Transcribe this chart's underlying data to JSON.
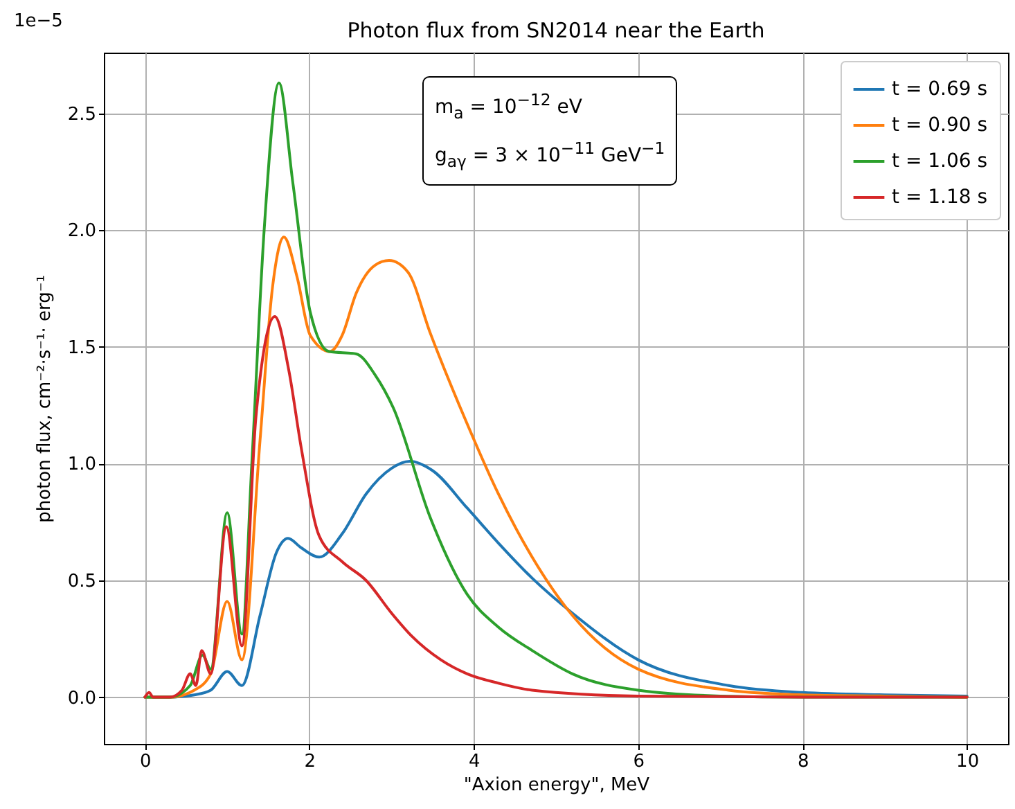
{
  "chart_data": {
    "type": "line",
    "title": "Photon flux from SN2014 near the Earth",
    "xlabel": "\"Axion energy\", MeV",
    "ylabel": "photon flux, cm⁻²·s⁻¹· erg⁻¹",
    "annotations": [
      "1e−5",
      "m$_{a}$ = 10$^{−12}$ eV",
      "g$_{aγ}$ = 3 × 10$^{−11}$ GeV$^{−1}$"
    ],
    "xlim": [
      -0.5,
      10.5
    ],
    "xticks": [
      0,
      2,
      4,
      6,
      8,
      10
    ],
    "ylim": [
      -0.2,
      2.76
    ],
    "yticks": [
      {
        "value": 0,
        "label": "0.0"
      },
      {
        "value": 0.5,
        "label": "0.5"
      },
      {
        "value": 1,
        "label": "1.0"
      },
      {
        "value": 1.5,
        "label": "1.5"
      },
      {
        "value": 2,
        "label": "2.0"
      },
      {
        "value": 2.5,
        "label": "2.5"
      }
    ],
    "grid": true,
    "legend": "top right",
    "marker": "none",
    "line_style": "solid",
    "series": [
      {
        "name": "t = 0.69 s",
        "color": "#1f77b4",
        "x": [
          0,
          0.3,
          0.6,
          0.8,
          1.0,
          1.18,
          1.4,
          1.6,
          1.74,
          1.9,
          2.12,
          2.4,
          2.69,
          3.0,
          3.22,
          3.5,
          3.92,
          4.3,
          4.71,
          5.2,
          6.0,
          7.1,
          8.0,
          9.0,
          10.0
        ],
        "values": [
          0,
          0,
          0.01,
          0.03,
          0.11,
          0.05,
          0.35,
          0.62,
          0.68,
          0.64,
          0.6,
          0.7,
          0.87,
          0.98,
          1.01,
          0.97,
          0.81,
          0.66,
          0.51,
          0.36,
          0.16,
          0.05,
          0.02,
          0.01,
          0.005
        ]
      },
      {
        "name": "t = 0.90 s",
        "color": "#ff7f0e",
        "x": [
          0,
          0.3,
          0.6,
          0.8,
          1.0,
          1.18,
          1.4,
          1.55,
          1.69,
          1.85,
          2.01,
          2.25,
          2.4,
          2.57,
          2.8,
          2.97,
          3.2,
          3.47,
          3.92,
          4.3,
          4.71,
          5.2,
          6.0,
          7.1,
          8.0,
          9.0,
          10.0
        ],
        "values": [
          0,
          0,
          0.03,
          0.1,
          0.41,
          0.16,
          1.1,
          1.75,
          1.97,
          1.8,
          1.55,
          1.48,
          1.55,
          1.73,
          1.85,
          1.87,
          1.82,
          1.56,
          1.17,
          0.87,
          0.6,
          0.35,
          0.12,
          0.03,
          0.01,
          0.005,
          0
        ]
      },
      {
        "name": "t = 1.06 s",
        "color": "#2ca02c",
        "x": [
          0,
          0.3,
          0.55,
          0.7,
          0.8,
          1.0,
          1.18,
          1.3,
          1.45,
          1.63,
          1.8,
          2.01,
          2.24,
          2.57,
          2.8,
          3.02,
          3.47,
          3.92,
          4.3,
          4.71,
          5.2,
          6.0,
          7.0,
          8.0,
          10.0
        ],
        "values": [
          0,
          0,
          0.05,
          0.18,
          0.12,
          0.79,
          0.27,
          1.0,
          2.0,
          2.63,
          2.2,
          1.65,
          1.48,
          1.47,
          1.38,
          1.24,
          0.77,
          0.44,
          0.3,
          0.2,
          0.1,
          0.03,
          0.005,
          0,
          0
        ]
      },
      {
        "name": "t = 1.18 s",
        "color": "#d62728",
        "x": [
          0,
          0.05,
          0.1,
          0.3,
          0.45,
          0.55,
          0.62,
          0.69,
          0.8,
          0.99,
          1.18,
          1.35,
          1.58,
          1.75,
          1.9,
          2.12,
          2.4,
          2.69,
          3.0,
          3.25,
          3.6,
          3.92,
          4.3,
          4.71,
          6.0,
          8.0,
          10.0
        ],
        "values": [
          0,
          0.02,
          0,
          0,
          0.03,
          0.1,
          0.05,
          0.2,
          0.1,
          0.73,
          0.22,
          1.2,
          1.63,
          1.4,
          1.07,
          0.69,
          0.58,
          0.5,
          0.36,
          0.26,
          0.16,
          0.1,
          0.06,
          0.03,
          0.005,
          0,
          0
        ]
      }
    ]
  }
}
